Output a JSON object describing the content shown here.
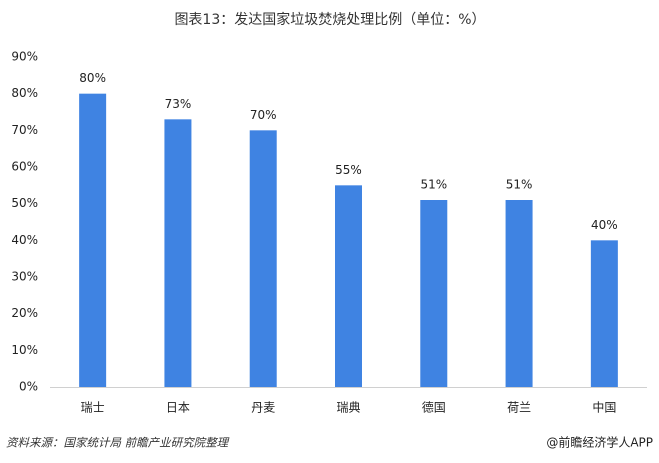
{
  "chart_data": {
    "type": "bar",
    "title": "图表13：发达国家垃圾焚烧处理比例（单位：%）",
    "categories": [
      "瑞士",
      "日本",
      "丹麦",
      "瑞典",
      "德国",
      "荷兰",
      "中国"
    ],
    "values": [
      80,
      73,
      70,
      55,
      51,
      51,
      40
    ],
    "value_labels": [
      "80%",
      "73%",
      "70%",
      "55%",
      "51%",
      "51%",
      "40%"
    ],
    "color": "#3f83e2",
    "ylim": [
      0,
      90
    ],
    "yticks": [
      {
        "value": 0,
        "label": "0%"
      },
      {
        "value": 10,
        "label": "10%"
      },
      {
        "value": 20,
        "label": "20%"
      },
      {
        "value": 30,
        "label": "30%"
      },
      {
        "value": 40,
        "label": "40%"
      },
      {
        "value": 50,
        "label": "50%"
      },
      {
        "value": 60,
        "label": "60%"
      },
      {
        "value": 70,
        "label": "70%"
      },
      {
        "value": 80,
        "label": "80%"
      },
      {
        "value": 90,
        "label": "90%"
      }
    ],
    "grid": false
  },
  "source": "资料来源：国家统计局 前瞻产业研究院整理",
  "footer": "@前瞻经济学人APP"
}
